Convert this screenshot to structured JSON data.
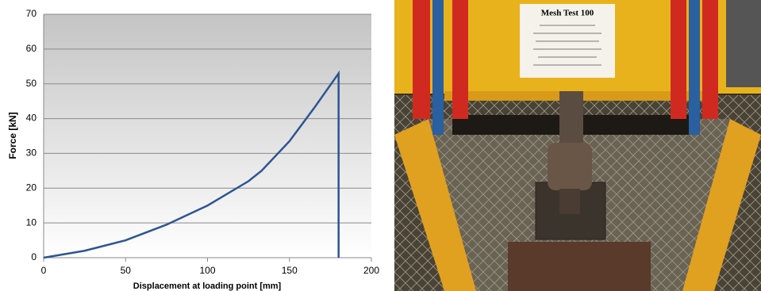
{
  "chart_data": {
    "type": "line",
    "x_label": "Displacement at loading point [mm]",
    "y_label": "Force [kN]",
    "series": [
      {
        "name": "Force",
        "color": "#2e5591",
        "x": [
          0,
          25,
          50,
          75,
          100,
          125,
          133,
          150,
          165,
          180,
          180
        ],
        "values": [
          0,
          2,
          5,
          9.5,
          15,
          22,
          25,
          33.5,
          43,
          53,
          0
        ]
      }
    ],
    "xlim": [
      0,
      200
    ],
    "xticks": [
      0,
      50,
      100,
      150,
      200
    ],
    "ylim": [
      0,
      70
    ],
    "yticks": [
      0,
      10,
      20,
      30,
      40,
      50,
      60,
      70
    ],
    "grid": true
  },
  "photo": {
    "sign_title": "Mesh Test 100"
  }
}
